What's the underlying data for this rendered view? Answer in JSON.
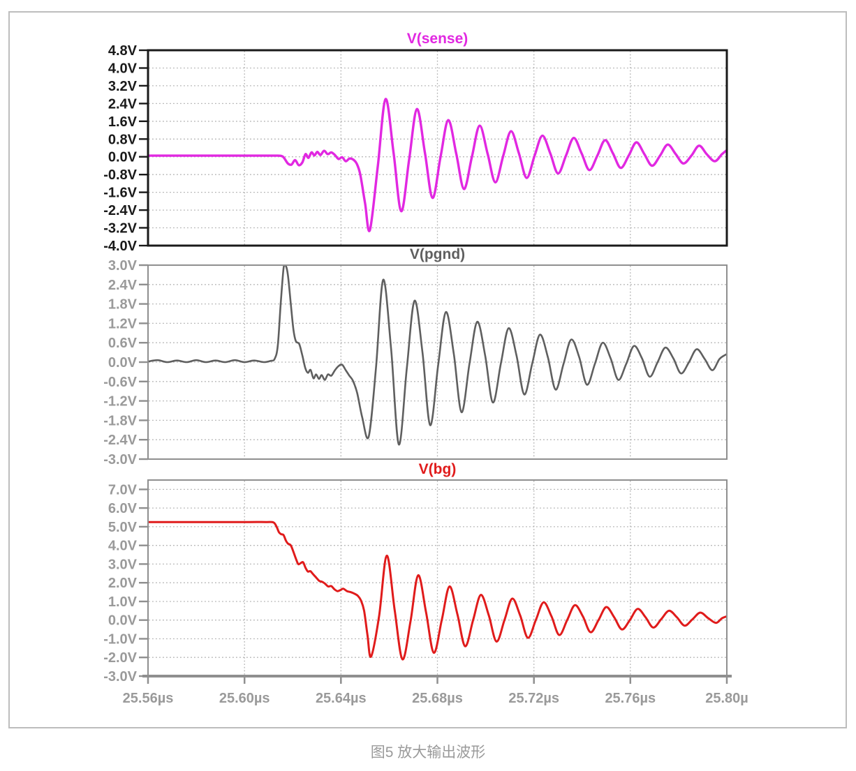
{
  "figure": {
    "caption": "图5 放大输出波形"
  },
  "colors": {
    "plot1_label": "#1a1a1a",
    "plot1_border": "#1a1a1a",
    "gray_label": "#9a9a9a",
    "gray_border": "#8f8f8f",
    "grid": "#b3b3b3",
    "caption": "#9a9a9a",
    "page_border": "#bdbdbd"
  },
  "chart_data": {
    "type": "line",
    "title": "",
    "xlabel": "",
    "ylabel": "",
    "grid": true,
    "x_range": [
      25.56,
      25.8
    ],
    "x_tick_values": [
      25.56,
      25.6,
      25.64,
      25.68,
      25.72,
      25.76,
      25.8
    ],
    "x_tick_labels": [
      "25.56µs",
      "25.60µs",
      "25.64µs",
      "25.68µs",
      "25.72µs",
      "25.76µs",
      "25.80µ"
    ],
    "plots": [
      {
        "id": "sense",
        "title": "V(sense)",
        "color": "#e128e1",
        "label_color": "#1a1a1a",
        "border_color": "#1a1a1a",
        "border_width": 3,
        "stroke_width": 3.4,
        "y_top": 4.8,
        "y_bottom": -4.0,
        "y_tick_values": [
          4.8,
          4.0,
          3.2,
          2.4,
          1.6,
          0.8,
          0.0,
          -0.8,
          -1.6,
          -2.4,
          -3.2,
          -4.0
        ],
        "y_tick_labels": [
          "4.8V",
          "4.0V",
          "3.2V",
          "2.4V",
          "1.6V",
          "0.8V",
          "0.0V",
          "-0.8V",
          "-1.6V",
          "-2.4V",
          "-3.2V",
          "-4.0V"
        ],
        "points": [
          [
            25.56,
            0.05
          ],
          [
            25.575,
            0.05
          ],
          [
            25.59,
            0.05
          ],
          [
            25.602,
            0.05
          ],
          [
            25.61,
            0.05
          ],
          [
            25.614,
            0.05
          ],
          [
            25.616,
            0.0
          ],
          [
            25.618,
            -0.3
          ],
          [
            25.6195,
            -0.35
          ],
          [
            25.621,
            -0.15
          ],
          [
            25.6225,
            -0.38
          ],
          [
            25.624,
            -0.25
          ],
          [
            25.6253,
            0.12
          ],
          [
            25.6265,
            -0.05
          ],
          [
            25.6278,
            0.2
          ],
          [
            25.629,
            0.06
          ],
          [
            25.6302,
            0.22
          ],
          [
            25.6315,
            0.08
          ],
          [
            25.633,
            0.27
          ],
          [
            25.6345,
            0.12
          ],
          [
            25.636,
            0.2
          ],
          [
            25.6375,
            0.08
          ],
          [
            25.639,
            -0.1
          ],
          [
            25.6405,
            -0.02
          ],
          [
            25.642,
            -0.2
          ],
          [
            25.6435,
            -0.08
          ],
          [
            25.645,
            -0.12
          ],
          [
            25.6465,
            -0.3
          ],
          [
            25.648,
            -0.8
          ],
          [
            25.65,
            -2.1
          ],
          [
            25.652,
            -3.3
          ],
          [
            25.6553,
            -0.4
          ],
          [
            25.6585,
            2.6
          ],
          [
            25.6618,
            0.2
          ],
          [
            25.665,
            -2.45
          ],
          [
            25.6683,
            -0.1
          ],
          [
            25.6715,
            2.15
          ],
          [
            25.6748,
            0.2
          ],
          [
            25.678,
            -1.85
          ],
          [
            25.6813,
            0.0
          ],
          [
            25.6845,
            1.65
          ],
          [
            25.6878,
            0.15
          ],
          [
            25.691,
            -1.45
          ],
          [
            25.6943,
            0.0
          ],
          [
            25.6975,
            1.4
          ],
          [
            25.7008,
            0.15
          ],
          [
            25.704,
            -1.15
          ],
          [
            25.7073,
            0.05
          ],
          [
            25.7105,
            1.15
          ],
          [
            25.7138,
            0.15
          ],
          [
            25.717,
            -0.95
          ],
          [
            25.7203,
            0.05
          ],
          [
            25.7235,
            0.95
          ],
          [
            25.7268,
            0.15
          ],
          [
            25.73,
            -0.75
          ],
          [
            25.7333,
            0.05
          ],
          [
            25.7365,
            0.85
          ],
          [
            25.7398,
            0.15
          ],
          [
            25.743,
            -0.6
          ],
          [
            25.7463,
            0.05
          ],
          [
            25.7495,
            0.75
          ],
          [
            25.7528,
            0.15
          ],
          [
            25.756,
            -0.5
          ],
          [
            25.7593,
            0.05
          ],
          [
            25.7625,
            0.65
          ],
          [
            25.7658,
            0.12
          ],
          [
            25.769,
            -0.4
          ],
          [
            25.7723,
            0.05
          ],
          [
            25.7755,
            0.55
          ],
          [
            25.7788,
            0.12
          ],
          [
            25.782,
            -0.3
          ],
          [
            25.7853,
            0.05
          ],
          [
            25.7885,
            0.5
          ],
          [
            25.7918,
            0.1
          ],
          [
            25.795,
            -0.2
          ],
          [
            25.798,
            0.12
          ],
          [
            25.8,
            0.3
          ]
        ]
      },
      {
        "id": "pgnd",
        "title": "V(pgnd)",
        "color": "#5f5f5f",
        "label_color": "#9a9a9a",
        "border_color": "#8f8f8f",
        "border_width": 2,
        "stroke_width": 2.6,
        "y_top": 3.0,
        "y_bottom": -3.0,
        "y_tick_values": [
          3.0,
          2.4,
          1.8,
          1.2,
          0.6,
          0.0,
          -0.6,
          -1.2,
          -1.8,
          -2.4,
          -3.0
        ],
        "y_tick_labels": [
          "3.0V",
          "2.4V",
          "1.8V",
          "1.2V",
          "0.6V",
          "0.0V",
          "-0.6V",
          "-1.2V",
          "-1.8V",
          "-2.4V",
          "-3.0V"
        ],
        "points": [
          [
            25.56,
            0.02
          ],
          [
            25.564,
            0.06
          ],
          [
            25.568,
            0.0
          ],
          [
            25.572,
            0.05
          ],
          [
            25.576,
            0.0
          ],
          [
            25.58,
            0.06
          ],
          [
            25.584,
            0.0
          ],
          [
            25.588,
            0.05
          ],
          [
            25.592,
            0.0
          ],
          [
            25.596,
            0.06
          ],
          [
            25.6,
            0.0
          ],
          [
            25.604,
            0.05
          ],
          [
            25.608,
            0.0
          ],
          [
            25.611,
            0.04
          ],
          [
            25.6125,
            0.1
          ],
          [
            25.6138,
            0.5
          ],
          [
            25.615,
            1.8
          ],
          [
            25.6162,
            2.9
          ],
          [
            25.617,
            3.0
          ],
          [
            25.618,
            2.7
          ],
          [
            25.6192,
            1.8
          ],
          [
            25.6203,
            1.0
          ],
          [
            25.6213,
            0.65
          ],
          [
            25.6227,
            0.56
          ],
          [
            25.624,
            0.2
          ],
          [
            25.6252,
            -0.18
          ],
          [
            25.6263,
            -0.33
          ],
          [
            25.6274,
            -0.24
          ],
          [
            25.6286,
            -0.5
          ],
          [
            25.6297,
            -0.38
          ],
          [
            25.6309,
            -0.52
          ],
          [
            25.632,
            -0.4
          ],
          [
            25.6333,
            -0.55
          ],
          [
            25.6346,
            -0.38
          ],
          [
            25.636,
            -0.42
          ],
          [
            25.6375,
            -0.25
          ],
          [
            25.639,
            -0.12
          ],
          [
            25.6405,
            -0.08
          ],
          [
            25.642,
            -0.25
          ],
          [
            25.6435,
            -0.42
          ],
          [
            25.645,
            -0.58
          ],
          [
            25.6467,
            -0.95
          ],
          [
            25.6488,
            -1.7
          ],
          [
            25.6515,
            -2.3
          ],
          [
            25.6545,
            -0.2
          ],
          [
            25.6575,
            2.55
          ],
          [
            25.6608,
            0.4
          ],
          [
            25.664,
            -2.55
          ],
          [
            25.6673,
            -0.2
          ],
          [
            25.6705,
            1.9
          ],
          [
            25.6738,
            0.3
          ],
          [
            25.677,
            -1.95
          ],
          [
            25.6803,
            -0.1
          ],
          [
            25.6835,
            1.55
          ],
          [
            25.6868,
            0.25
          ],
          [
            25.69,
            -1.55
          ],
          [
            25.6933,
            -0.05
          ],
          [
            25.6965,
            1.25
          ],
          [
            25.6998,
            0.2
          ],
          [
            25.703,
            -1.25
          ],
          [
            25.7063,
            -0.05
          ],
          [
            25.7095,
            1.05
          ],
          [
            25.7128,
            0.2
          ],
          [
            25.716,
            -1.0
          ],
          [
            25.7193,
            -0.05
          ],
          [
            25.7225,
            0.85
          ],
          [
            25.7258,
            0.15
          ],
          [
            25.729,
            -0.85
          ],
          [
            25.7323,
            -0.05
          ],
          [
            25.7355,
            0.7
          ],
          [
            25.7388,
            0.15
          ],
          [
            25.742,
            -0.7
          ],
          [
            25.7453,
            -0.05
          ],
          [
            25.7485,
            0.6
          ],
          [
            25.7518,
            0.12
          ],
          [
            25.755,
            -0.55
          ],
          [
            25.7583,
            -0.05
          ],
          [
            25.7615,
            0.5
          ],
          [
            25.7648,
            0.12
          ],
          [
            25.768,
            -0.45
          ],
          [
            25.7713,
            0.0
          ],
          [
            25.7745,
            0.45
          ],
          [
            25.7778,
            0.12
          ],
          [
            25.781,
            -0.35
          ],
          [
            25.7843,
            0.0
          ],
          [
            25.7875,
            0.4
          ],
          [
            25.7908,
            0.1
          ],
          [
            25.794,
            -0.25
          ],
          [
            25.797,
            0.1
          ],
          [
            25.8,
            0.25
          ]
        ]
      },
      {
        "id": "bg",
        "title": "V(bg)",
        "color": "#e01b1b",
        "label_color": "#9a9a9a",
        "border_color": "#8f8f8f",
        "border_width": 2,
        "stroke_width": 3.0,
        "y_top": 7.5,
        "y_bottom": -3.0,
        "y_tick_values": [
          7.0,
          6.0,
          5.0,
          4.0,
          3.0,
          2.0,
          1.0,
          0.0,
          -1.0,
          -2.0,
          -3.0
        ],
        "y_tick_labels": [
          "7.0V",
          "6.0V",
          "5.0V",
          "4.0V",
          "3.0V",
          "2.0V",
          "1.0V",
          "0.0V",
          "-1.0V",
          "-2.0V",
          "-3.0V"
        ],
        "points": [
          [
            25.56,
            5.25
          ],
          [
            25.575,
            5.25
          ],
          [
            25.59,
            5.25
          ],
          [
            25.602,
            5.25
          ],
          [
            25.609,
            5.25
          ],
          [
            25.612,
            5.23
          ],
          [
            25.6133,
            5.0
          ],
          [
            25.6143,
            4.7
          ],
          [
            25.6152,
            4.6
          ],
          [
            25.6162,
            4.55
          ],
          [
            25.6172,
            4.25
          ],
          [
            25.618,
            4.1
          ],
          [
            25.6192,
            4.0
          ],
          [
            25.6203,
            3.65
          ],
          [
            25.6213,
            3.3
          ],
          [
            25.6223,
            3.0
          ],
          [
            25.6233,
            3.05
          ],
          [
            25.6243,
            3.1
          ],
          [
            25.6253,
            2.8
          ],
          [
            25.6263,
            2.6
          ],
          [
            25.6273,
            2.62
          ],
          [
            25.6285,
            2.45
          ],
          [
            25.6297,
            2.28
          ],
          [
            25.631,
            2.1
          ],
          [
            25.6322,
            2.05
          ],
          [
            25.6334,
            1.95
          ],
          [
            25.6347,
            1.8
          ],
          [
            25.636,
            1.82
          ],
          [
            25.6373,
            1.65
          ],
          [
            25.6386,
            1.55
          ],
          [
            25.6399,
            1.62
          ],
          [
            25.641,
            1.68
          ],
          [
            25.6425,
            1.55
          ],
          [
            25.644,
            1.5
          ],
          [
            25.6455,
            1.42
          ],
          [
            25.647,
            1.3
          ],
          [
            25.6483,
            1.05
          ],
          [
            25.6496,
            0.5
          ],
          [
            25.651,
            -0.8
          ],
          [
            25.6525,
            -1.95
          ],
          [
            25.6558,
            0.2
          ],
          [
            25.659,
            3.45
          ],
          [
            25.6623,
            0.5
          ],
          [
            25.6655,
            -2.1
          ],
          [
            25.6688,
            -0.1
          ],
          [
            25.672,
            2.4
          ],
          [
            25.6753,
            0.4
          ],
          [
            25.6785,
            -1.75
          ],
          [
            25.6818,
            0.0
          ],
          [
            25.685,
            1.8
          ],
          [
            25.6883,
            0.3
          ],
          [
            25.6915,
            -1.4
          ],
          [
            25.6948,
            0.0
          ],
          [
            25.698,
            1.35
          ],
          [
            25.7013,
            0.25
          ],
          [
            25.7045,
            -1.15
          ],
          [
            25.7078,
            0.0
          ],
          [
            25.711,
            1.15
          ],
          [
            25.7143,
            0.25
          ],
          [
            25.7175,
            -0.95
          ],
          [
            25.7208,
            0.0
          ],
          [
            25.724,
            0.95
          ],
          [
            25.7273,
            0.2
          ],
          [
            25.7305,
            -0.8
          ],
          [
            25.7338,
            0.0
          ],
          [
            25.737,
            0.8
          ],
          [
            25.7403,
            0.2
          ],
          [
            25.7435,
            -0.65
          ],
          [
            25.7468,
            0.0
          ],
          [
            25.75,
            0.7
          ],
          [
            25.7533,
            0.15
          ],
          [
            25.7565,
            -0.5
          ],
          [
            25.7598,
            0.0
          ],
          [
            25.763,
            0.6
          ],
          [
            25.7663,
            0.15
          ],
          [
            25.7695,
            -0.4
          ],
          [
            25.7728,
            0.05
          ],
          [
            25.776,
            0.5
          ],
          [
            25.7793,
            0.15
          ],
          [
            25.7825,
            -0.3
          ],
          [
            25.7858,
            0.05
          ],
          [
            25.789,
            0.4
          ],
          [
            25.7923,
            0.1
          ],
          [
            25.7955,
            -0.15
          ],
          [
            25.798,
            0.1
          ],
          [
            25.8,
            0.2
          ]
        ]
      }
    ]
  }
}
